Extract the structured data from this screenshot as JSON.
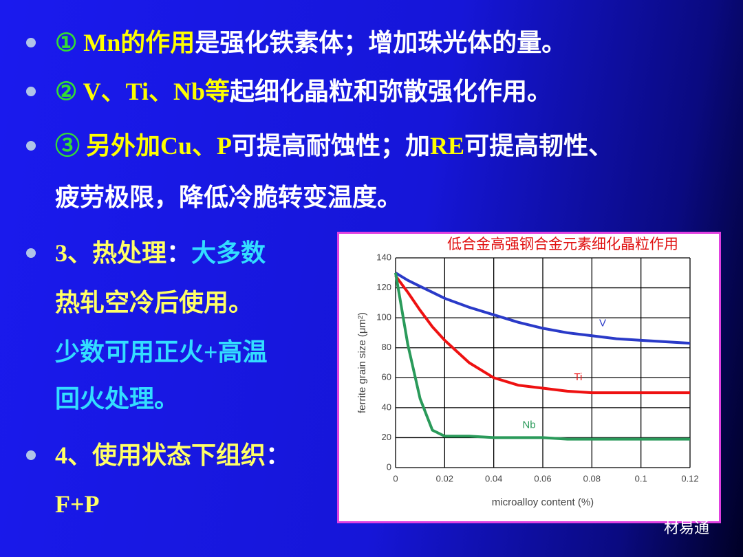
{
  "bullets": [
    {
      "lines": [
        [
          {
            "text": "①",
            "color": "#33dd33"
          },
          {
            "text": " Mn的作用",
            "color": "#ffff00"
          },
          {
            "text": "是强化铁素体；增加珠光体的量。",
            "color": "#ffffff"
          }
        ]
      ]
    },
    {
      "lines": [
        [
          {
            "text": "②",
            "color": "#33dd33"
          },
          {
            "text": " V、Ti、Nb等",
            "color": "#ffff00"
          },
          {
            "text": "起细化晶粒和弥散强化作用。",
            "color": "#ffffff"
          }
        ]
      ]
    },
    {
      "lines": [
        [
          {
            "text": "③",
            "color": "#33dd33"
          },
          {
            "text": " 另外加Cu、P",
            "color": "#ffff00"
          },
          {
            "text": "可提高耐蚀性；加",
            "color": "#ffffff"
          },
          {
            "text": "RE",
            "color": "#ffff00"
          },
          {
            "text": "可提高韧性、",
            "color": "#ffffff"
          }
        ],
        [
          {
            "text": "疲劳极限，降低冷脆转变温度。",
            "color": "#ffffff"
          }
        ]
      ]
    },
    {
      "lines": [
        [
          {
            "text": "3、热处理",
            "color": "#ffff66"
          },
          {
            "text": "：",
            "color": "#ffffff"
          },
          {
            "text": "大多数",
            "color": "#33ddff"
          }
        ],
        [
          {
            "text": "热轧空冷后使用。",
            "color": "#ffff66"
          }
        ],
        [
          {
            "text": "少数可用正火+高温",
            "color": "#33ddff"
          }
        ],
        [
          {
            "text": "回火处理。",
            "color": "#33ddff"
          }
        ]
      ]
    },
    {
      "lines": [
        [
          {
            "text": "4、使用状态下组织",
            "color": "#ffff66"
          },
          {
            "text": "：",
            "color": "#ffffff"
          }
        ],
        [
          {
            "text": "F+P",
            "color": "#ffff66"
          }
        ]
      ]
    }
  ],
  "chart_data": {
    "type": "line",
    "title": "低合金高强钢合金元素细化晶粒作用",
    "x_label": "microalloy content (%)",
    "y_label": "ferrite grain size (μm²)",
    "x": [
      0,
      0.005,
      0.01,
      0.015,
      0.02,
      0.03,
      0.04,
      0.05,
      0.06,
      0.07,
      0.08,
      0.09,
      0.1,
      0.11,
      0.12
    ],
    "series": [
      {
        "name": "V",
        "color": "#2a3ac8",
        "values": [
          130,
          125,
          121,
          117,
          113,
          107,
          102,
          97,
          93,
          90,
          88,
          86,
          85,
          84,
          83
        ]
      },
      {
        "name": "Ti",
        "color": "#ee1111",
        "values": [
          128,
          117,
          105,
          94,
          85,
          70,
          60,
          55,
          53,
          51,
          50,
          50,
          50,
          50,
          50
        ]
      },
      {
        "name": "Nb",
        "color": "#2a9a5a",
        "values": [
          130,
          82,
          46,
          25,
          21,
          21,
          20,
          20,
          20,
          19,
          19,
          19,
          19,
          19,
          19
        ]
      }
    ],
    "xlim": [
      0,
      0.12
    ],
    "xticks": [
      0,
      0.02,
      0.04,
      0.06,
      0.08,
      0.1,
      0.12
    ],
    "ylim": [
      0,
      140
    ],
    "yticks": [
      0,
      20,
      40,
      60,
      80,
      100,
      120,
      140
    ],
    "grid": true
  },
  "watermark": "材易通"
}
